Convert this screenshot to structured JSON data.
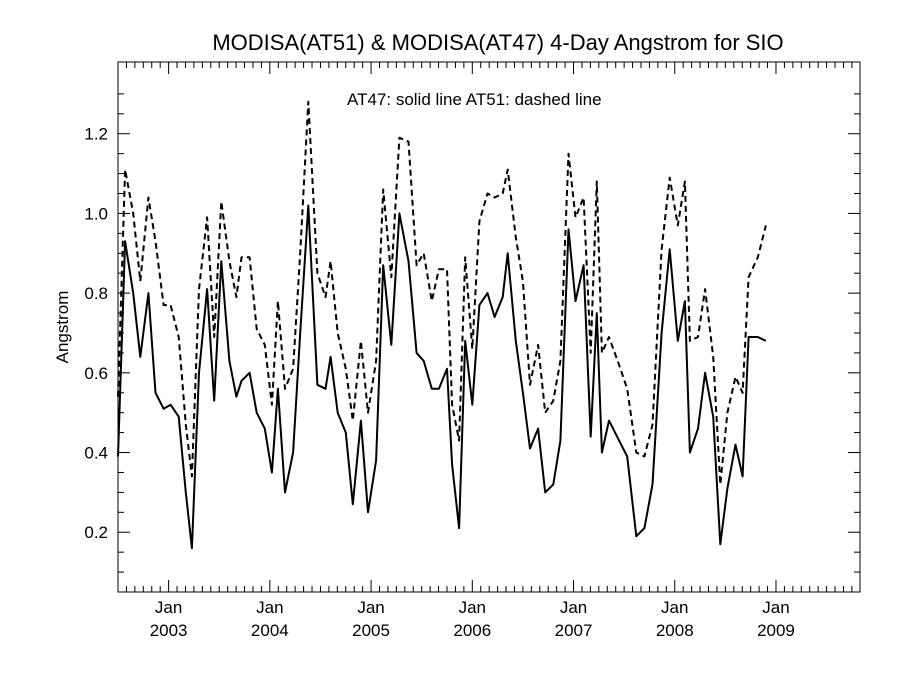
{
  "chart_data": {
    "type": "line",
    "title": "MODISA(AT51) & MODISA(AT47) 4-Day Angstrom for SIO",
    "ylabel": "Angstrom",
    "xlabel": "",
    "annotation": "AT47: solid line   AT51: dashed line",
    "xlim": [
      2002.5,
      2009.83
    ],
    "ylim": [
      0.05,
      1.38
    ],
    "yticks": [
      0.2,
      0.4,
      0.6,
      0.8,
      1.0,
      1.2
    ],
    "ytick_labels": [
      "0.2",
      "0.4",
      "0.6",
      "0.8",
      "1.0",
      "1.2"
    ],
    "xticks": [
      {
        "pos": 2003.0,
        "month": "Jan",
        "year": "2003"
      },
      {
        "pos": 2004.0,
        "month": "Jan",
        "year": "2004"
      },
      {
        "pos": 2005.0,
        "month": "Jan",
        "year": "2005"
      },
      {
        "pos": 2006.0,
        "month": "Jan",
        "year": "2006"
      },
      {
        "pos": 2007.0,
        "month": "Jan",
        "year": "2007"
      },
      {
        "pos": 2008.0,
        "month": "Jan",
        "year": "2008"
      },
      {
        "pos": 2009.0,
        "month": "Jan",
        "year": "2009"
      }
    ],
    "grid": false,
    "series": [
      {
        "style": "solid",
        "color": "#000000",
        "points": [
          [
            2002.5,
            0.39
          ],
          [
            2002.57,
            0.93
          ],
          [
            2002.65,
            0.8
          ],
          [
            2002.72,
            0.64
          ],
          [
            2002.8,
            0.8
          ],
          [
            2002.87,
            0.55
          ],
          [
            2002.95,
            0.51
          ],
          [
            2003.02,
            0.52
          ],
          [
            2003.1,
            0.49
          ],
          [
            2003.17,
            0.3
          ],
          [
            2003.23,
            0.16
          ],
          [
            2003.3,
            0.6
          ],
          [
            2003.38,
            0.81
          ],
          [
            2003.45,
            0.53
          ],
          [
            2003.52,
            0.88
          ],
          [
            2003.6,
            0.63
          ],
          [
            2003.67,
            0.54
          ],
          [
            2003.72,
            0.58
          ],
          [
            2003.8,
            0.6
          ],
          [
            2003.87,
            0.5
          ],
          [
            2003.95,
            0.46
          ],
          [
            2004.02,
            0.35
          ],
          [
            2004.08,
            0.56
          ],
          [
            2004.15,
            0.3
          ],
          [
            2004.23,
            0.4
          ],
          [
            2004.3,
            0.7
          ],
          [
            2004.38,
            1.02
          ],
          [
            2004.47,
            0.57
          ],
          [
            2004.55,
            0.56
          ],
          [
            2004.6,
            0.64
          ],
          [
            2004.67,
            0.5
          ],
          [
            2004.75,
            0.45
          ],
          [
            2004.82,
            0.27
          ],
          [
            2004.9,
            0.48
          ],
          [
            2004.97,
            0.25
          ],
          [
            2005.05,
            0.38
          ],
          [
            2005.12,
            0.87
          ],
          [
            2005.2,
            0.67
          ],
          [
            2005.28,
            1.0
          ],
          [
            2005.37,
            0.88
          ],
          [
            2005.45,
            0.65
          ],
          [
            2005.52,
            0.63
          ],
          [
            2005.6,
            0.56
          ],
          [
            2005.67,
            0.56
          ],
          [
            2005.75,
            0.61
          ],
          [
            2005.8,
            0.37
          ],
          [
            2005.87,
            0.21
          ],
          [
            2005.93,
            0.68
          ],
          [
            2006.0,
            0.52
          ],
          [
            2006.07,
            0.77
          ],
          [
            2006.15,
            0.8
          ],
          [
            2006.22,
            0.74
          ],
          [
            2006.3,
            0.79
          ],
          [
            2006.35,
            0.9
          ],
          [
            2006.43,
            0.68
          ],
          [
            2006.5,
            0.55
          ],
          [
            2006.57,
            0.41
          ],
          [
            2006.65,
            0.46
          ],
          [
            2006.72,
            0.3
          ],
          [
            2006.8,
            0.32
          ],
          [
            2006.87,
            0.43
          ],
          [
            2006.95,
            0.96
          ],
          [
            2007.02,
            0.78
          ],
          [
            2007.1,
            0.87
          ],
          [
            2007.17,
            0.44
          ],
          [
            2007.23,
            0.75
          ],
          [
            2007.28,
            0.4
          ],
          [
            2007.35,
            0.48
          ],
          [
            2007.45,
            0.43
          ],
          [
            2007.53,
            0.39
          ],
          [
            2007.62,
            0.19
          ],
          [
            2007.7,
            0.21
          ],
          [
            2007.78,
            0.32
          ],
          [
            2007.87,
            0.7
          ],
          [
            2007.95,
            0.91
          ],
          [
            2008.03,
            0.68
          ],
          [
            2008.1,
            0.78
          ],
          [
            2008.15,
            0.4
          ],
          [
            2008.23,
            0.46
          ],
          [
            2008.3,
            0.6
          ],
          [
            2008.38,
            0.49
          ],
          [
            2008.45,
            0.17
          ],
          [
            2008.52,
            0.31
          ],
          [
            2008.6,
            0.42
          ],
          [
            2008.67,
            0.34
          ],
          [
            2008.73,
            0.69
          ],
          [
            2008.82,
            0.69
          ],
          [
            2008.9,
            0.68
          ]
        ]
      },
      {
        "style": "dashed",
        "color": "#000000",
        "points": [
          [
            2002.5,
            0.54
          ],
          [
            2002.57,
            1.11
          ],
          [
            2002.65,
            1.0
          ],
          [
            2002.72,
            0.83
          ],
          [
            2002.8,
            1.04
          ],
          [
            2002.87,
            0.93
          ],
          [
            2002.95,
            0.77
          ],
          [
            2003.02,
            0.77
          ],
          [
            2003.1,
            0.69
          ],
          [
            2003.17,
            0.47
          ],
          [
            2003.23,
            0.34
          ],
          [
            2003.3,
            0.81
          ],
          [
            2003.38,
            0.99
          ],
          [
            2003.45,
            0.69
          ],
          [
            2003.52,
            1.03
          ],
          [
            2003.6,
            0.88
          ],
          [
            2003.67,
            0.79
          ],
          [
            2003.72,
            0.89
          ],
          [
            2003.8,
            0.89
          ],
          [
            2003.87,
            0.71
          ],
          [
            2003.95,
            0.67
          ],
          [
            2004.02,
            0.52
          ],
          [
            2004.08,
            0.78
          ],
          [
            2004.15,
            0.56
          ],
          [
            2004.23,
            0.61
          ],
          [
            2004.3,
            0.9
          ],
          [
            2004.38,
            1.28
          ],
          [
            2004.47,
            0.85
          ],
          [
            2004.55,
            0.79
          ],
          [
            2004.6,
            0.88
          ],
          [
            2004.67,
            0.7
          ],
          [
            2004.75,
            0.61
          ],
          [
            2004.82,
            0.48
          ],
          [
            2004.9,
            0.68
          ],
          [
            2004.97,
            0.5
          ],
          [
            2005.05,
            0.63
          ],
          [
            2005.12,
            1.06
          ],
          [
            2005.2,
            0.84
          ],
          [
            2005.28,
            1.19
          ],
          [
            2005.37,
            1.18
          ],
          [
            2005.45,
            0.87
          ],
          [
            2005.52,
            0.9
          ],
          [
            2005.6,
            0.78
          ],
          [
            2005.67,
            0.86
          ],
          [
            2005.75,
            0.86
          ],
          [
            2005.8,
            0.52
          ],
          [
            2005.87,
            0.43
          ],
          [
            2005.93,
            0.89
          ],
          [
            2006.0,
            0.66
          ],
          [
            2006.07,
            0.98
          ],
          [
            2006.15,
            1.05
          ],
          [
            2006.22,
            1.04
          ],
          [
            2006.3,
            1.05
          ],
          [
            2006.35,
            1.11
          ],
          [
            2006.43,
            0.94
          ],
          [
            2006.5,
            0.83
          ],
          [
            2006.57,
            0.57
          ],
          [
            2006.65,
            0.67
          ],
          [
            2006.72,
            0.5
          ],
          [
            2006.8,
            0.53
          ],
          [
            2006.87,
            0.63
          ],
          [
            2006.95,
            1.15
          ],
          [
            2007.02,
            0.99
          ],
          [
            2007.1,
            1.04
          ],
          [
            2007.17,
            0.65
          ],
          [
            2007.23,
            1.08
          ],
          [
            2007.28,
            0.65
          ],
          [
            2007.35,
            0.69
          ],
          [
            2007.45,
            0.62
          ],
          [
            2007.53,
            0.56
          ],
          [
            2007.62,
            0.4
          ],
          [
            2007.7,
            0.39
          ],
          [
            2007.78,
            0.47
          ],
          [
            2007.87,
            0.91
          ],
          [
            2007.95,
            1.09
          ],
          [
            2008.03,
            0.97
          ],
          [
            2008.1,
            1.08
          ],
          [
            2008.15,
            0.68
          ],
          [
            2008.23,
            0.69
          ],
          [
            2008.3,
            0.81
          ],
          [
            2008.38,
            0.64
          ],
          [
            2008.45,
            0.32
          ],
          [
            2008.52,
            0.5
          ],
          [
            2008.6,
            0.59
          ],
          [
            2008.67,
            0.55
          ],
          [
            2008.73,
            0.84
          ],
          [
            2008.82,
            0.89
          ],
          [
            2008.9,
            0.97
          ]
        ]
      }
    ]
  }
}
